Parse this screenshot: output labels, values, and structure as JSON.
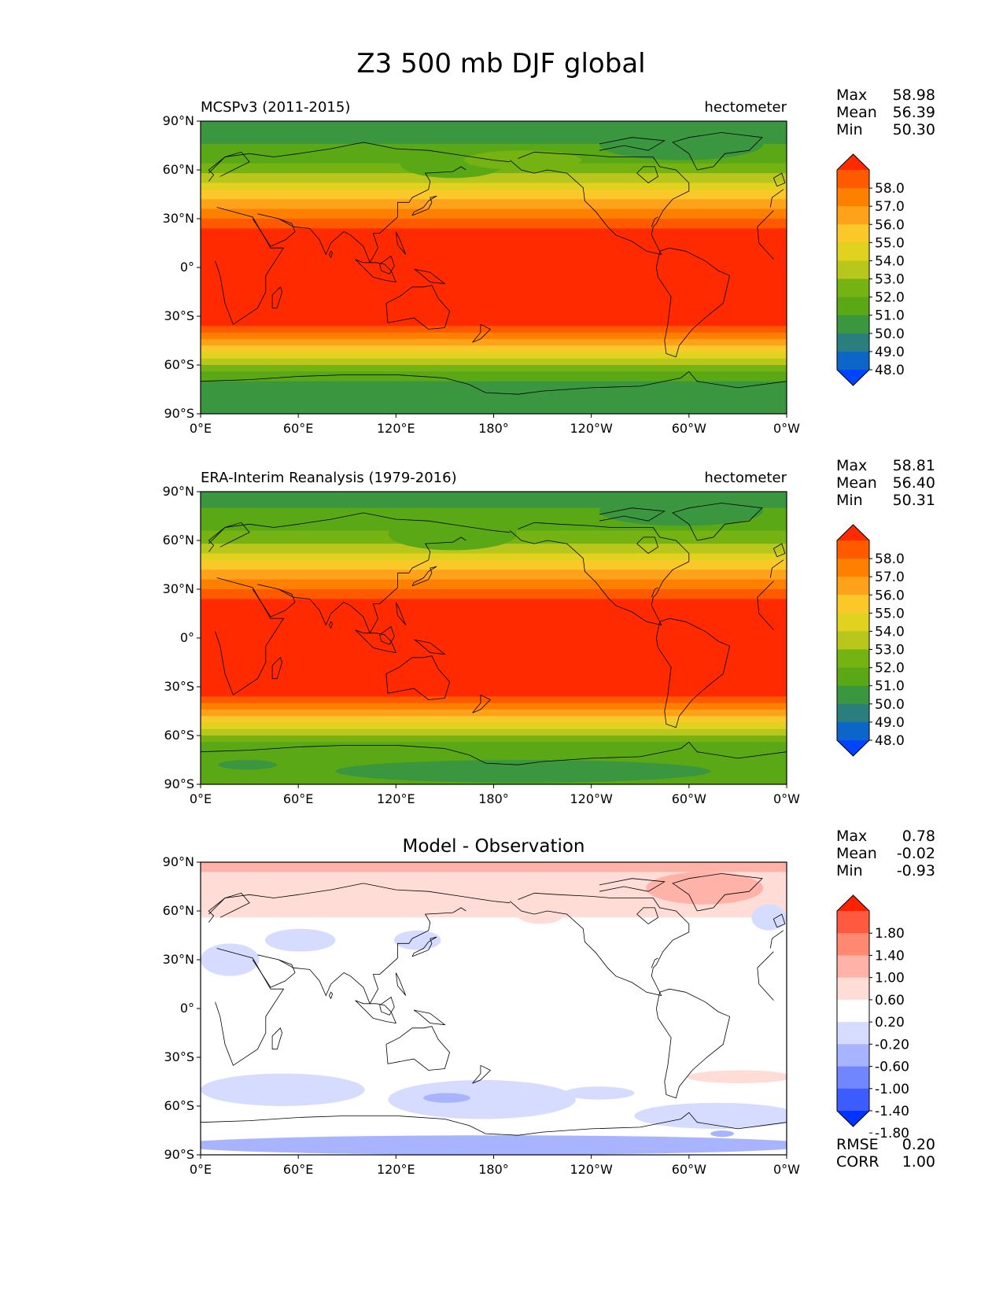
{
  "title": "Z3 500 mb DJF global",
  "x_ticks": [
    "0°E",
    "60°E",
    "120°E",
    "180°",
    "120°W",
    "60°W",
    "0°W"
  ],
  "y_ticks": [
    "90°N",
    "60°N",
    "30°N",
    "0°",
    "30°S",
    "60°S",
    "90°S"
  ],
  "panels": [
    {
      "id": "model",
      "left_title": "MCSPv3 (2011-2015)",
      "center_title": "",
      "units": "hectometer",
      "stats": [
        [
          "Max",
          "58.98"
        ],
        [
          "Mean",
          "56.39"
        ],
        [
          "Min",
          "50.30"
        ]
      ],
      "colorbar_labels": [
        "58.0",
        "57.0",
        "56.0",
        "55.0",
        "54.0",
        "53.0",
        "52.0",
        "51.0",
        "50.0",
        "49.0",
        "48.0"
      ],
      "colorbar_colors": [
        "#ff2a00",
        "#ff5a00",
        "#ff7f00",
        "#fda21a",
        "#fbc82a",
        "#e0d21e",
        "#b9c71c",
        "#75b312",
        "#5aa815",
        "#3b9640",
        "#2a7f7e",
        "#0c66c9",
        "#0044ff"
      ],
      "extra_stats": []
    },
    {
      "id": "obs",
      "left_title": "ERA-Interim Reanalysis (1979-2016)",
      "center_title": "",
      "units": "hectometer",
      "stats": [
        [
          "Max",
          "58.81"
        ],
        [
          "Mean",
          "56.40"
        ],
        [
          "Min",
          "50.31"
        ]
      ],
      "colorbar_labels": [
        "58.0",
        "57.0",
        "56.0",
        "55.0",
        "54.0",
        "53.0",
        "52.0",
        "51.0",
        "50.0",
        "49.0",
        "48.0"
      ],
      "colorbar_colors": [
        "#ff2a00",
        "#ff5a00",
        "#ff7f00",
        "#fda21a",
        "#fbc82a",
        "#e0d21e",
        "#b9c71c",
        "#75b312",
        "#5aa815",
        "#3b9640",
        "#2a7f7e",
        "#0c66c9",
        "#0044ff"
      ],
      "extra_stats": []
    },
    {
      "id": "diff",
      "left_title": "",
      "center_title": "Model - Observation",
      "units": "",
      "stats": [
        [
          "Max",
          "0.78"
        ],
        [
          "Mean",
          "-0.02"
        ],
        [
          "Min",
          "-0.93"
        ]
      ],
      "colorbar_labels": [
        "1.80",
        "1.40",
        "1.00",
        "0.60",
        "0.20",
        "-0.20",
        "-0.60",
        "-1.00",
        "-1.40",
        "-1.80"
      ],
      "colorbar_colors": [
        "#ff2200",
        "#ff5a40",
        "#ff8870",
        "#ffb2a8",
        "#ffdcd6",
        "#ffffff",
        "#d6dcff",
        "#a8b4ff",
        "#6f86ff",
        "#3d5cff",
        "#0033ff"
      ],
      "extra_stats": [
        [
          "RMSE",
          "0.20"
        ],
        [
          "CORR",
          "1.00"
        ]
      ]
    }
  ]
}
